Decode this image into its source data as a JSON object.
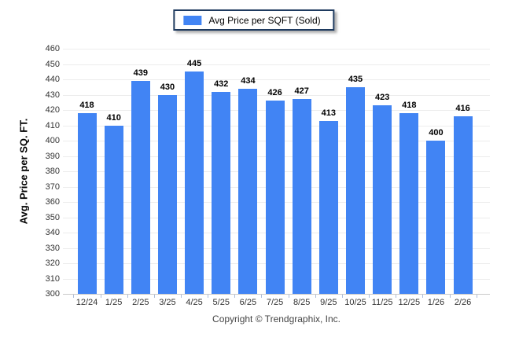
{
  "chart_data": {
    "type": "bar",
    "categories": [
      "12/24",
      "1/25",
      "2/25",
      "3/25",
      "4/25",
      "5/25",
      "6/25",
      "7/25",
      "8/25",
      "9/25",
      "10/25",
      "11/25",
      "12/25",
      "1/26",
      "2/26"
    ],
    "series": [
      {
        "name": "Avg Price per SQFT (Sold)",
        "values": [
          418,
          410,
          439,
          430,
          445,
          432,
          434,
          426,
          427,
          413,
          435,
          423,
          418,
          400,
          416
        ],
        "color": "#4184f4"
      }
    ],
    "title": "",
    "xlabel": "",
    "ylabel": "Avg. Price per SQ. FT.",
    "ylim": [
      300,
      460
    ],
    "ytick_step": 10,
    "yticks": [
      300,
      310,
      320,
      330,
      340,
      350,
      360,
      370,
      380,
      390,
      400,
      410,
      420,
      430,
      440,
      450,
      460
    ],
    "grid": true,
    "legend_position": "top-center",
    "value_labels": true
  },
  "legend": {
    "label": "Avg Price per SQFT (Sold)",
    "swatch_color": "#4184f4"
  },
  "y_axis": {
    "title": "Avg. Price per SQ. FT."
  },
  "footer": {
    "text": "Copyright © Trendgraphix, Inc."
  },
  "colors": {
    "bar": "#4184f4",
    "gridline": "#ececec",
    "baseline": "#c9c9c9",
    "axis_tick": "#aebcd8",
    "legend_border": "#1e3a5f",
    "tick_text": "#333333",
    "value_text": "#000000",
    "footer_text": "#444444"
  }
}
